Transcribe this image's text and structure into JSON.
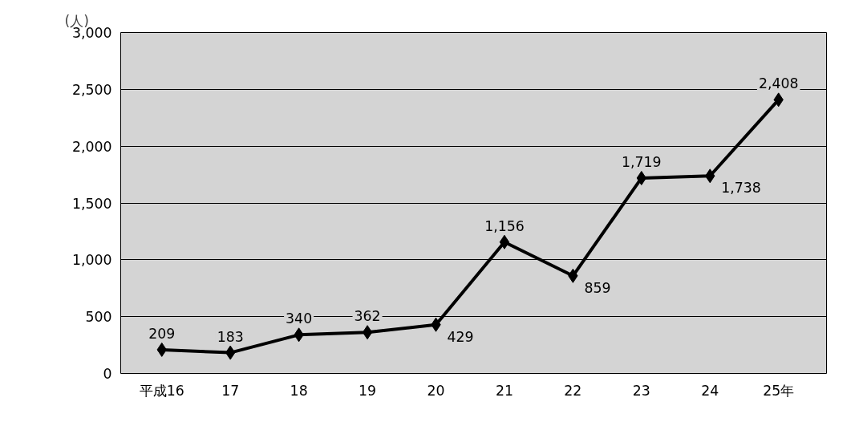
{
  "chart_data": {
    "type": "line",
    "ylabel": "(人)",
    "categories": [
      "平成16",
      "17",
      "18",
      "19",
      "20",
      "21",
      "22",
      "23",
      "24",
      "25年"
    ],
    "values": [
      209,
      183,
      340,
      362,
      429,
      1156,
      859,
      1719,
      1738,
      2408
    ],
    "value_labels": [
      "209",
      "183",
      "340",
      "362",
      "429",
      "1,156",
      "859",
      "1,719",
      "1,738",
      "2,408"
    ],
    "color": "#000000",
    "marker": "diamond",
    "line_style": "solid",
    "ylim": [
      0,
      3000
    ],
    "yticks": [
      0,
      500,
      {
        "value": 1000,
        "label": "1,000"
      },
      {
        "value": 1500,
        "label": "1,500"
      },
      {
        "value": 2000,
        "label": "2,000"
      },
      {
        "value": 2500,
        "label": "2,500"
      },
      {
        "value": 3000,
        "label": "3,000"
      }
    ],
    "grid": "y"
  }
}
